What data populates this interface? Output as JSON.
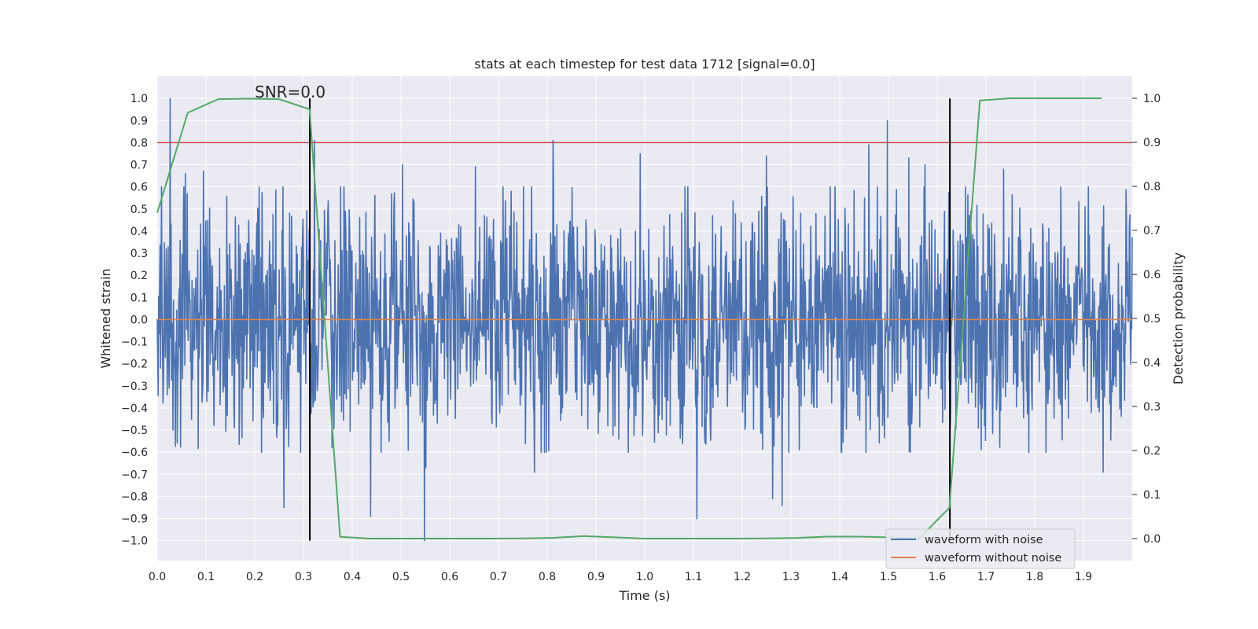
{
  "chart_data": {
    "type": "line",
    "title": "stats at each timestep for test data 1712 [signal=0.0]",
    "xlabel": "Time (s)",
    "ylabel": "Whitened strain",
    "y2label": "Detection probability",
    "xlim": [
      0.0,
      2.0
    ],
    "ylim": [
      -1.09,
      1.1
    ],
    "y2lim": [
      -0.05,
      1.05
    ],
    "xticks": [
      "0.0",
      "0.1",
      "0.2",
      "0.3",
      "0.4",
      "0.5",
      "0.6",
      "0.7",
      "0.8",
      "0.9",
      "1.0",
      "1.1",
      "1.2",
      "1.3",
      "1.4",
      "1.5",
      "1.6",
      "1.7",
      "1.8",
      "1.9"
    ],
    "yticks": [
      "1.0",
      "0.9",
      "0.8",
      "0.7",
      "0.6",
      "0.5",
      "0.4",
      "0.3",
      "0.2",
      "0.1",
      "0.0",
      "−0.1",
      "−0.2",
      "−0.3",
      "−0.4",
      "−0.5",
      "−0.6",
      "−0.7",
      "−0.8",
      "−0.9",
      "−1.0"
    ],
    "y2ticks": [
      "1.0",
      "0.9",
      "0.8",
      "0.7",
      "0.6",
      "0.5",
      "0.4",
      "0.3",
      "0.2",
      "0.1",
      "0.0"
    ],
    "annotation": "SNR=0.0",
    "threshold": {
      "y": 0.8,
      "color": "#c44e52"
    },
    "event_markers": [
      {
        "x": 0.313,
        "ymin": -1.0,
        "ymax": 1.0,
        "color": "#000000"
      },
      {
        "x": 1.626,
        "ymin": -1.0,
        "ymax": 1.0,
        "color": "#000000"
      }
    ],
    "series": [
      {
        "name": "waveform with noise",
        "color": "#4c72b0",
        "axis": "left",
        "n_points": 2048,
        "seed": 1712,
        "spikes": [
          {
            "x": 0.026,
            "y": 1.0
          },
          {
            "x": 0.032,
            "y": -0.5
          },
          {
            "x": 0.058,
            "y": 0.66
          },
          {
            "x": 0.095,
            "y": 0.67
          },
          {
            "x": 0.26,
            "y": -0.85
          },
          {
            "x": 0.322,
            "y": 0.81
          },
          {
            "x": 0.438,
            "y": -0.89
          },
          {
            "x": 0.503,
            "y": 0.7
          },
          {
            "x": 0.548,
            "y": -1.0
          },
          {
            "x": 0.551,
            "y": -0.67
          },
          {
            "x": 0.653,
            "y": 0.69
          },
          {
            "x": 0.774,
            "y": -0.69
          },
          {
            "x": 0.812,
            "y": 0.81
          },
          {
            "x": 0.991,
            "y": 0.75
          },
          {
            "x": 1.107,
            "y": -0.9
          },
          {
            "x": 1.25,
            "y": 0.74
          },
          {
            "x": 1.262,
            "y": -0.81
          },
          {
            "x": 1.282,
            "y": -0.84
          },
          {
            "x": 1.46,
            "y": 0.79
          },
          {
            "x": 1.498,
            "y": 0.9
          },
          {
            "x": 1.542,
            "y": 0.73
          },
          {
            "x": 1.575,
            "y": 0.7
          },
          {
            "x": 1.736,
            "y": 0.68
          },
          {
            "x": 1.94,
            "y": -0.69
          }
        ]
      },
      {
        "name": "waveform without noise",
        "color": "#dd8452",
        "axis": "left",
        "x": [
          0.0,
          2.0
        ],
        "y": [
          0.0,
          0.0
        ]
      },
      {
        "name": "detection probability",
        "color": "#55a868",
        "axis": "right",
        "x": [
          0.0,
          0.0625,
          0.125,
          0.1875,
          0.25,
          0.3125,
          0.375,
          0.4375,
          0.5,
          0.5625,
          0.625,
          0.6875,
          0.75,
          0.8125,
          0.875,
          0.9375,
          1.0,
          1.0625,
          1.125,
          1.1875,
          1.25,
          1.3125,
          1.375,
          1.4375,
          1.5,
          1.5625,
          1.625,
          1.6875,
          1.75,
          1.8125,
          1.875,
          1.9375
        ],
        "y": [
          0.74,
          0.967,
          0.998,
          0.999,
          0.998,
          0.975,
          0.004,
          0.0,
          0.0,
          0.0,
          0.0,
          0.0,
          0.0005,
          0.0018,
          0.0055,
          0.003,
          0.0,
          0.0,
          0.0,
          0.0,
          0.0005,
          0.0015,
          0.0045,
          0.0045,
          0.003,
          0.0,
          0.07,
          0.995,
          1.0,
          1.0,
          1.0,
          1.0
        ]
      }
    ],
    "legend": {
      "location": "lower-right",
      "entries": [
        {
          "label": "waveform with noise",
          "color": "#4c72b0"
        },
        {
          "label": "waveform without noise",
          "color": "#dd8452"
        }
      ]
    }
  }
}
